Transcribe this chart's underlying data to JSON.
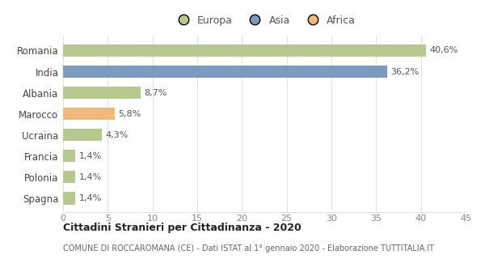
{
  "categories": [
    "Romania",
    "India",
    "Albania",
    "Marocco",
    "Ucraina",
    "Francia",
    "Polonia",
    "Spagna"
  ],
  "values": [
    40.6,
    36.2,
    8.7,
    5.8,
    4.3,
    1.4,
    1.4,
    1.4
  ],
  "labels": [
    "40,6%",
    "36,2%",
    "8,7%",
    "5,8%",
    "4,3%",
    "1,4%",
    "1,4%",
    "1,4%"
  ],
  "colors": [
    "#b5c98e",
    "#7a9bbf",
    "#b5c98e",
    "#f0b87a",
    "#b5c98e",
    "#b5c98e",
    "#b5c98e",
    "#b5c98e"
  ],
  "legend_labels": [
    "Europa",
    "Asia",
    "Africa"
  ],
  "legend_colors": [
    "#b5c98e",
    "#7a9bbf",
    "#f0b87a"
  ],
  "xlim": [
    0,
    45
  ],
  "xticks": [
    0,
    5,
    10,
    15,
    20,
    25,
    30,
    35,
    40,
    45
  ],
  "title": "Cittadini Stranieri per Cittadinanza - 2020",
  "subtitle": "COMUNE DI ROCCAROMANA (CE) - Dati ISTAT al 1° gennaio 2020 - Elaborazione TUTTITALIA.IT",
  "bar_height": 0.6,
  "background_color": "#ffffff",
  "grid_color": "#e0e0e0"
}
